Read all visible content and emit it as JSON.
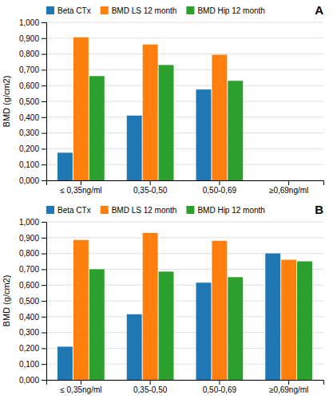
{
  "chart_data": [
    {
      "type": "bar",
      "annotations": [
        "A"
      ],
      "categories": [
        "≤ 0,35ng/ml",
        "0,35-0,50",
        "0,50-0,69",
        "≥0,69ng/ml"
      ],
      "series": [
        {
          "name": "Beta CTx",
          "values": [
            0.175,
            0.41,
            0.575,
            0.0
          ]
        },
        {
          "name": "BMD LS 12 month",
          "values": [
            0.905,
            0.86,
            0.795,
            0.0
          ]
        },
        {
          "name": "BMD Hip 12 month",
          "values": [
            0.66,
            0.73,
            0.63,
            0.0
          ]
        }
      ],
      "y_label": "BMD (g/cm2)",
      "ylim": [
        0.0,
        1.0
      ],
      "yticks": [
        {
          "value": 0.0,
          "label": "0,000"
        },
        {
          "value": 0.1,
          "label": "0,100"
        },
        {
          "value": 0.2,
          "label": "0,200"
        },
        {
          "value": 0.3,
          "label": "0,300"
        },
        {
          "value": 0.4,
          "label": "0,400"
        },
        {
          "value": 0.5,
          "label": "0,500"
        },
        {
          "value": 0.6,
          "label": "0,600"
        },
        {
          "value": 0.7,
          "label": "0,700"
        },
        {
          "value": 0.8,
          "label": "0,800"
        },
        {
          "value": 0.9,
          "label": "0,900"
        },
        {
          "value": 1.0,
          "label": "1,000"
        }
      ],
      "grid": true,
      "legend": "top"
    },
    {
      "type": "bar",
      "annotations": [
        "B"
      ],
      "categories": [
        "≤ 0,35ng/ml",
        "0,35-0,50",
        "0,50-0,69",
        "≥0,69ng/ml"
      ],
      "series": [
        {
          "name": "Beta CTx",
          "values": [
            0.21,
            0.415,
            0.615,
            0.8
          ]
        },
        {
          "name": "BMD LS 12 month",
          "values": [
            0.885,
            0.93,
            0.88,
            0.76
          ]
        },
        {
          "name": "BMD Hip 12 month",
          "values": [
            0.7,
            0.685,
            0.65,
            0.75
          ]
        }
      ],
      "y_label": "BMD (g/cm2)",
      "ylim": [
        0.0,
        1.0
      ],
      "yticks": [
        {
          "value": 0.0,
          "label": "0,000"
        },
        {
          "value": 0.1,
          "label": "0,100"
        },
        {
          "value": 0.2,
          "label": "0,200"
        },
        {
          "value": 0.3,
          "label": "0,300"
        },
        {
          "value": 0.4,
          "label": "0,400"
        },
        {
          "value": 0.5,
          "label": "0,500"
        },
        {
          "value": 0.6,
          "label": "0,600"
        },
        {
          "value": 0.7,
          "label": "0,700"
        },
        {
          "value": 0.8,
          "label": "0,800"
        },
        {
          "value": 0.9,
          "label": "0,900"
        },
        {
          "value": 1.0,
          "label": "1,000"
        }
      ],
      "grid": true,
      "legend": "top"
    }
  ]
}
